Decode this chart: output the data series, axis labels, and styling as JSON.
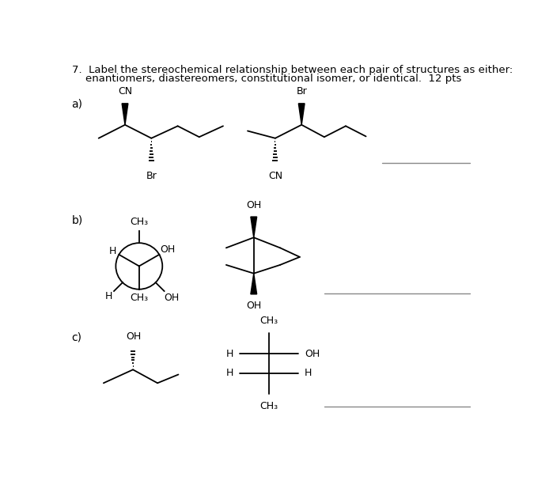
{
  "title_line1": "7.  Label the stereochemical relationship between each pair of structures as either:",
  "title_line2": "    enantiomers, diastereomers, constitutional isomer, or identical.  12 pts",
  "bg_color": "#ffffff",
  "text_color": "#000000",
  "line_color": "#000000",
  "answer_line_color": "#888888",
  "section_labels": [
    "a)",
    "b)",
    "c)"
  ]
}
